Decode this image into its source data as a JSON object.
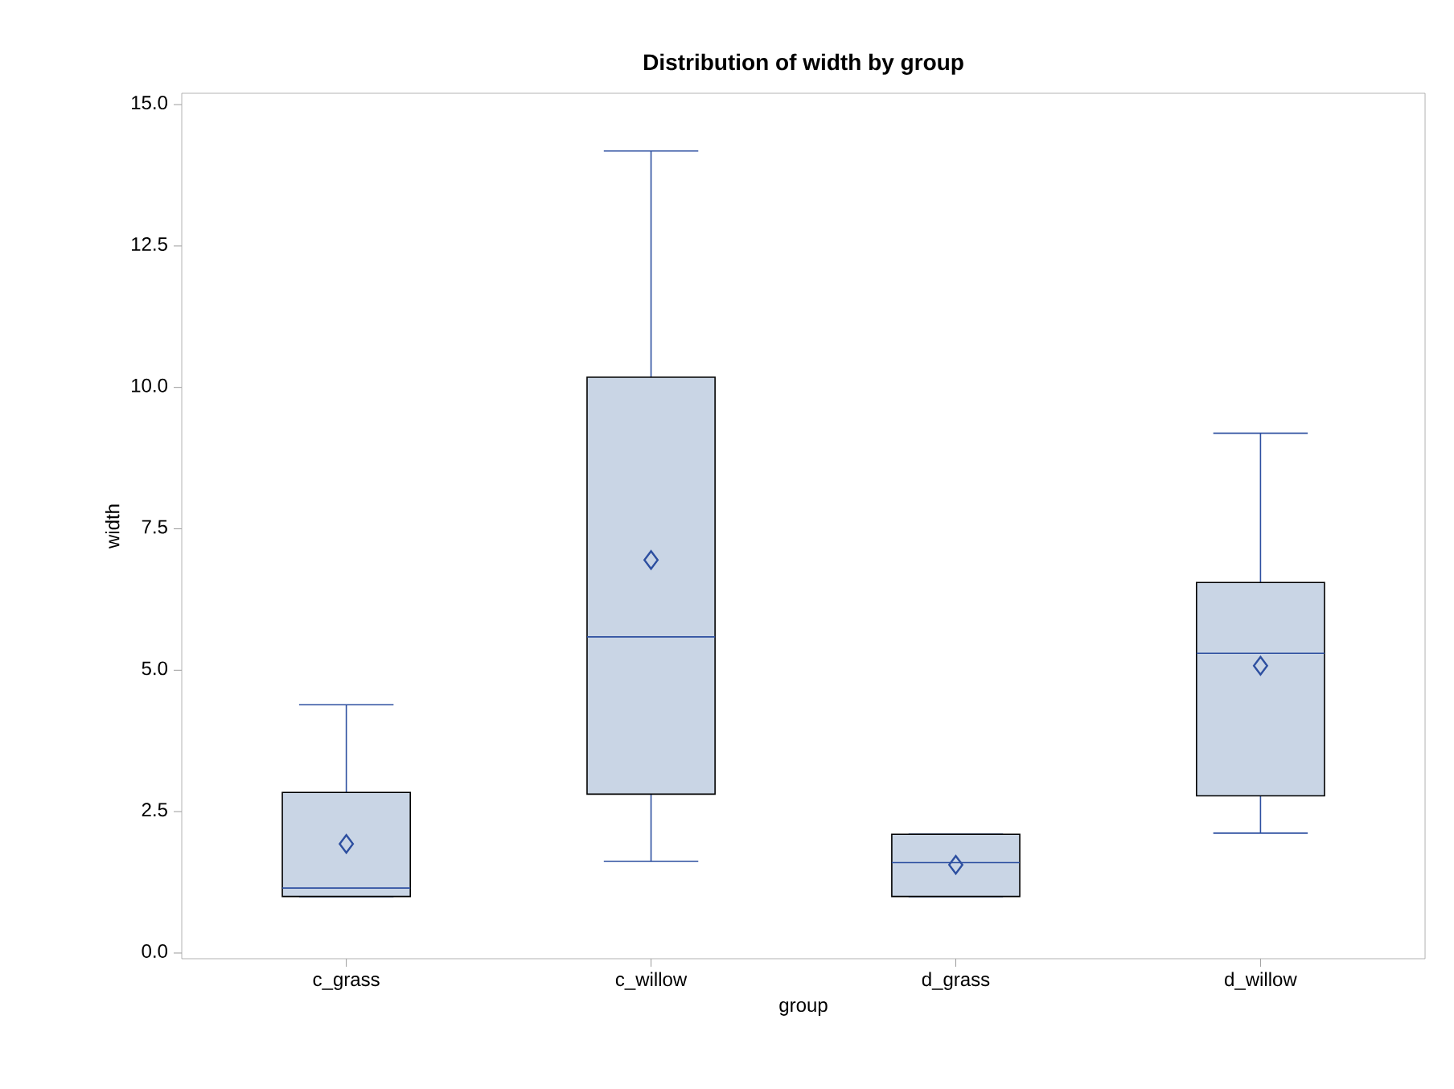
{
  "chart_data": {
    "type": "box",
    "title": "Distribution of width by group",
    "xlabel": "group",
    "ylabel": "width",
    "categories": [
      "c_grass",
      "c_willow",
      "d_grass",
      "d_willow"
    ],
    "boxes": [
      {
        "low": 1.0,
        "q1": 1.0,
        "median": 1.15,
        "q3": 2.84,
        "high": 4.39,
        "mean": 1.93
      },
      {
        "low": 1.62,
        "q1": 2.81,
        "median": 5.59,
        "q3": 10.18,
        "high": 14.18,
        "mean": 6.95
      },
      {
        "low": 1.0,
        "q1": 1.0,
        "median": 1.6,
        "q3": 2.1,
        "high": 2.1,
        "mean": 1.56
      },
      {
        "low": 2.12,
        "q1": 2.78,
        "median": 5.3,
        "q3": 6.55,
        "high": 9.19,
        "mean": 5.08
      }
    ],
    "color": "#c9d5e5",
    "marker": "diamond",
    "ylim": [
      -0.1,
      15.2
    ],
    "yticks": [
      {
        "value": 0,
        "label": "0.0"
      },
      {
        "value": 2.5,
        "label": "2.5"
      },
      {
        "value": 5,
        "label": "5.0"
      },
      {
        "value": 7.5,
        "label": "7.5"
      },
      {
        "value": 10,
        "label": "10.0"
      },
      {
        "value": 12.5,
        "label": "12.5"
      },
      {
        "value": 15,
        "label": "15.0"
      }
    ],
    "grid": false
  }
}
